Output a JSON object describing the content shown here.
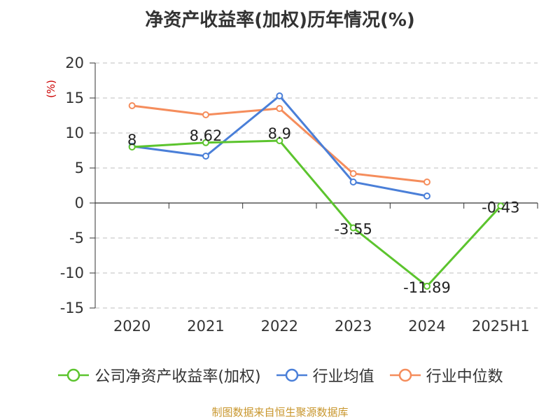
{
  "chart_data": {
    "type": "line",
    "title": "净资产收益率(加权)历年情况(%)",
    "ylabel": "(%)",
    "categories": [
      "2020",
      "2021",
      "2022",
      "2023",
      "2024",
      "2025H1"
    ],
    "ylim": [
      -15,
      20
    ],
    "yticks": [
      20,
      15,
      10,
      5,
      0,
      -5,
      -10,
      -15
    ],
    "grid": true,
    "legend_position": "bottom",
    "series": [
      {
        "name": "公司净资产收益率(加权)",
        "color": "#5cc42e",
        "values": [
          8,
          8.62,
          8.9,
          -3.55,
          -11.89,
          -0.43
        ],
        "labels": [
          "8",
          "8.62",
          "8.9",
          "-3.55",
          "-11.89",
          "-0.43"
        ]
      },
      {
        "name": "行业均值",
        "color": "#4a7fd8",
        "values": [
          8.1,
          6.7,
          15.3,
          3.0,
          1.0,
          null
        ]
      },
      {
        "name": "行业中位数",
        "color": "#f58d5c",
        "values": [
          13.9,
          12.6,
          13.5,
          4.2,
          3.0,
          null
        ]
      }
    ]
  },
  "footer": "制图数据来自恒生聚源数据库"
}
